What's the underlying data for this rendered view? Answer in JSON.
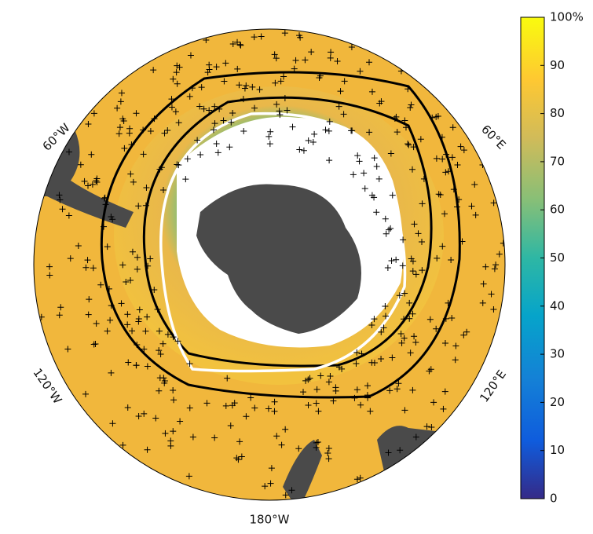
{
  "map": {
    "longitude_labels": [
      "60°W",
      "60°E",
      "120°W",
      "120°E",
      "180°W"
    ]
  },
  "colorbar": {
    "lim": [
      0,
      100
    ],
    "ticks": [
      0,
      10,
      20,
      30,
      40,
      50,
      60,
      70,
      80,
      90,
      {
        "value": 100,
        "label": "100%"
      }
    ]
  }
}
